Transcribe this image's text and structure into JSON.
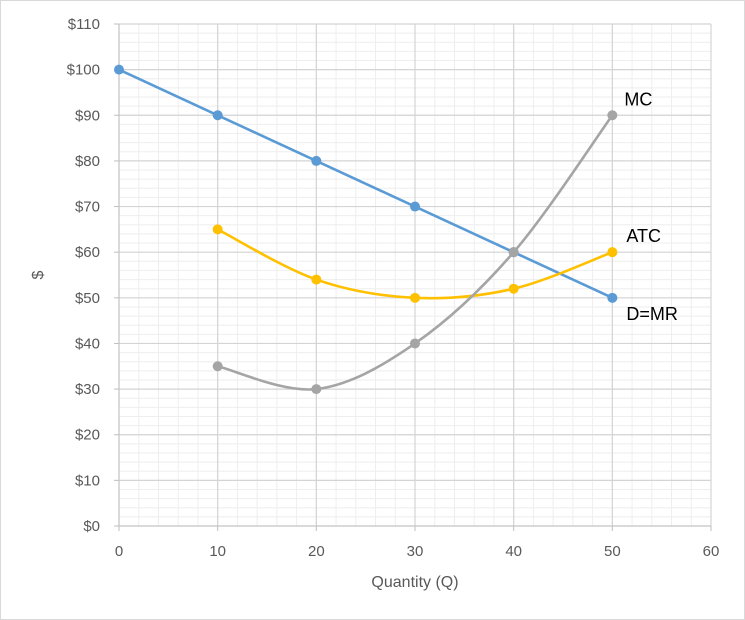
{
  "chart_data": {
    "type": "scatter",
    "title": "",
    "xlabel": "Quantity (Q)",
    "ylabel": "$",
    "xlim": [
      0,
      60
    ],
    "ylim": [
      0,
      110
    ],
    "x_ticks": [
      0,
      10,
      20,
      30,
      40,
      50,
      60
    ],
    "x_tick_labels": [
      "0",
      "10",
      "20",
      "30",
      "40",
      "50",
      "60"
    ],
    "y_ticks": [
      0,
      10,
      20,
      30,
      40,
      50,
      60,
      70,
      80,
      90,
      100,
      110
    ],
    "y_tick_labels": [
      "$0",
      "$10",
      "$20",
      "$30",
      "$40",
      "$50",
      "$60",
      "$70",
      "$80",
      "$90",
      "$100",
      "$110"
    ],
    "grid": true,
    "legend": "none",
    "series": [
      {
        "name": "D=MR",
        "color": "#5b9bd5",
        "smooth": false,
        "x": [
          0,
          10,
          20,
          30,
          40,
          50
        ],
        "y": [
          100,
          90,
          80,
          70,
          60,
          50
        ]
      },
      {
        "name": "ATC",
        "color": "#ffc000",
        "smooth": true,
        "x": [
          10,
          20,
          30,
          40,
          50
        ],
        "y": [
          65,
          54,
          50,
          52,
          60
        ]
      },
      {
        "name": "MC",
        "color": "#a5a5a5",
        "smooth": true,
        "x": [
          10,
          20,
          30,
          40,
          50
        ],
        "y": [
          35,
          30,
          40,
          60,
          90
        ]
      }
    ]
  }
}
